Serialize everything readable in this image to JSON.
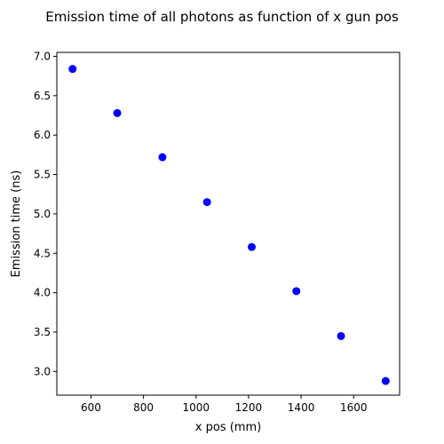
{
  "chart_data": {
    "type": "scatter",
    "title": "Emission time of all photons as function of x gun pos",
    "xlabel": "x pos (mm)",
    "ylabel": "Emission time (ns)",
    "xlim": [
      470,
      1775
    ],
    "ylim": [
      2.7,
      7.05
    ],
    "x_ticks": [
      600,
      800,
      1000,
      1200,
      1400,
      1600
    ],
    "y_ticks": [
      3.0,
      3.5,
      4.0,
      4.5,
      5.0,
      5.5,
      6.0,
      6.5,
      7.0
    ],
    "x_tick_labels": [
      "600",
      "800",
      "1000",
      "1200",
      "1400",
      "1600"
    ],
    "y_tick_labels": [
      "3.0",
      "3.5",
      "4.0",
      "4.5",
      "5.0",
      "5.5",
      "6.0",
      "6.5",
      "7.0"
    ],
    "grid": false,
    "marker_color": "#0000ff",
    "points": [
      {
        "x": 530,
        "y": 6.84
      },
      {
        "x": 700,
        "y": 6.28
      },
      {
        "x": 872,
        "y": 5.72
      },
      {
        "x": 1042,
        "y": 5.15
      },
      {
        "x": 1212,
        "y": 4.58
      },
      {
        "x": 1382,
        "y": 4.02
      },
      {
        "x": 1552,
        "y": 3.45
      },
      {
        "x": 1722,
        "y": 2.88
      }
    ]
  }
}
